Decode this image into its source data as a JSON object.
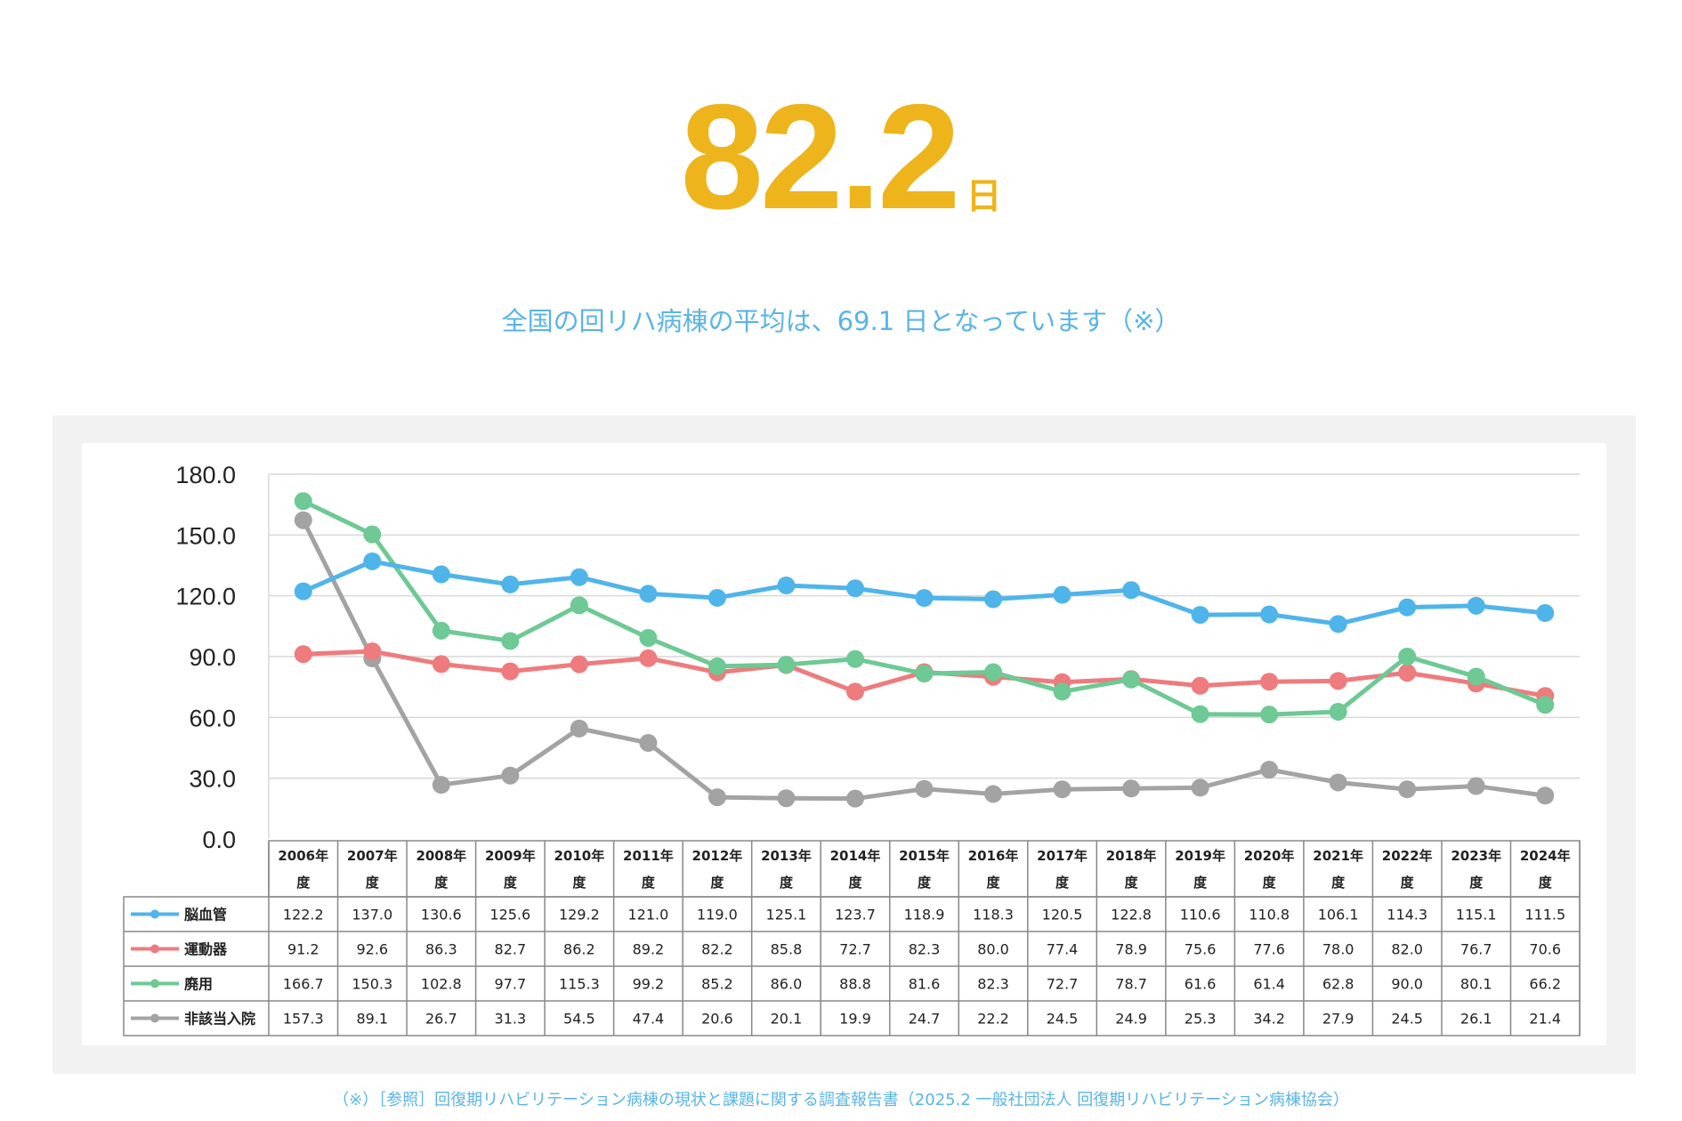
{
  "headline": {
    "value": "82.2",
    "unit": "日"
  },
  "subtitle": "全国の回リハ病棟の平均は、69.1 日となっています（※）",
  "footnote": "（※）［参照］回復期リハビリテーション病棟の現状と課題に関する調査報告書（2025.2 一般社団法人 回復期リハビリテーション病棟協会）",
  "colors": {
    "accent": "#eeb41c",
    "link": "#5ab4e6",
    "series": [
      "#4fb4ea",
      "#ee7b7d",
      "#6ec994",
      "#a3a3a3"
    ]
  },
  "chart_data": {
    "type": "line",
    "title": "",
    "ylim": [
      0,
      180
    ],
    "yticks": [
      "0.0",
      "30.0",
      "60.0",
      "90.0",
      "120.0",
      "150.0",
      "180.0"
    ],
    "grid": true,
    "categories": [
      "2006年度",
      "2007年度",
      "2008年度",
      "2009年度",
      "2010年度",
      "2011年度",
      "2012年度",
      "2013年度",
      "2014年度",
      "2015年度",
      "2016年度",
      "2017年度",
      "2018年度",
      "2019年度",
      "2020年度",
      "2021年度",
      "2022年度",
      "2023年度",
      "2024年度"
    ],
    "category_lines": [
      [
        "2006年",
        "度"
      ],
      [
        "2007年",
        "度"
      ],
      [
        "2008年",
        "度"
      ],
      [
        "2009年",
        "度"
      ],
      [
        "2010年",
        "度"
      ],
      [
        "2011年",
        "度"
      ],
      [
        "2012年",
        "度"
      ],
      [
        "2013年",
        "度"
      ],
      [
        "2014年",
        "度"
      ],
      [
        "2015年",
        "度"
      ],
      [
        "2016年",
        "度"
      ],
      [
        "2017年",
        "度"
      ],
      [
        "2018年",
        "度"
      ],
      [
        "2019年",
        "度"
      ],
      [
        "2020年",
        "度"
      ],
      [
        "2021年",
        "度"
      ],
      [
        "2022年",
        "度"
      ],
      [
        "2023年",
        "度"
      ],
      [
        "2024年",
        "度"
      ]
    ],
    "series": [
      {
        "name": "脳血管",
        "values": [
          "122.2",
          "137.0",
          "130.6",
          "125.6",
          "129.2",
          "121.0",
          "119.0",
          "125.1",
          "123.7",
          "118.9",
          "118.3",
          "120.5",
          "122.8",
          "110.6",
          "110.8",
          "106.1",
          "114.3",
          "115.1",
          "111.5"
        ]
      },
      {
        "name": "運動器",
        "values": [
          "91.2",
          "92.6",
          "86.3",
          "82.7",
          "86.2",
          "89.2",
          "82.2",
          "85.8",
          "72.7",
          "82.3",
          "80.0",
          "77.4",
          "78.9",
          "75.6",
          "77.6",
          "78.0",
          "82.0",
          "76.7",
          "70.6"
        ]
      },
      {
        "name": "廃用",
        "values": [
          "166.7",
          "150.3",
          "102.8",
          "97.7",
          "115.3",
          "99.2",
          "85.2",
          "86.0",
          "88.8",
          "81.6",
          "82.3",
          "72.7",
          "78.7",
          "61.6",
          "61.4",
          "62.8",
          "90.0",
          "80.1",
          "66.2"
        ]
      },
      {
        "name": "非該当入院",
        "values": [
          "157.3",
          "89.1",
          "26.7",
          "31.3",
          "54.5",
          "47.4",
          "20.6",
          "20.1",
          "19.9",
          "24.7",
          "22.2",
          "24.5",
          "24.9",
          "25.3",
          "34.2",
          "27.9",
          "24.5",
          "26.1",
          "21.4"
        ]
      }
    ]
  }
}
